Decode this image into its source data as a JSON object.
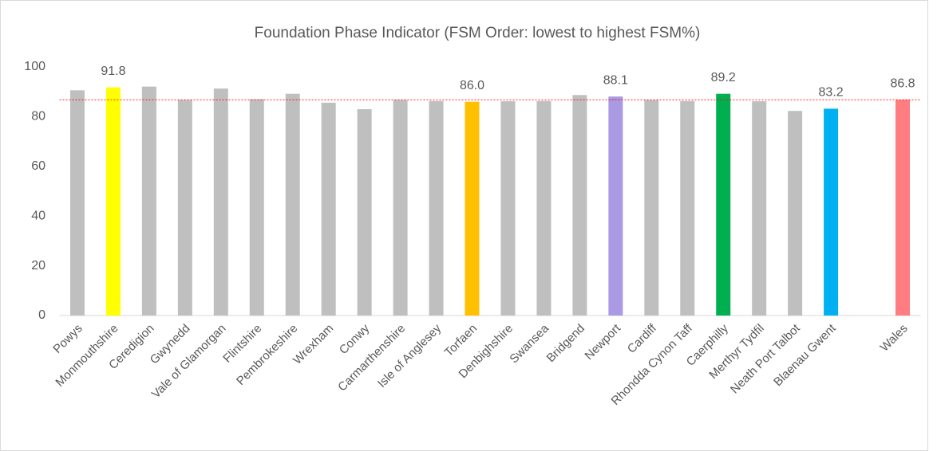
{
  "chart_data": {
    "type": "bar",
    "title": "Foundation Phase Indicator (FSM Order: lowest to highest FSM%)",
    "categories": [
      "Powys",
      "Monmouthshire",
      "Ceredigion",
      "Gwynedd",
      "Vale of Glamorgan",
      "Flintshire",
      "Pembrokeshire",
      "Wrexham",
      "Conwy",
      "Carmarthenshire",
      "Isle of Anglesey",
      "Torfaen",
      "Denbighshire",
      "Swansea",
      "Bridgend",
      "Newport",
      "Cardiff",
      "Rhondda Cynon Taff",
      "Caerphilly",
      "Merthyr Tydfil",
      "Neath Port Talbot",
      "Blaenau Gwent",
      null,
      "Wales"
    ],
    "values": [
      90.6,
      91.8,
      92.1,
      86.7,
      91.3,
      87.0,
      89.2,
      85.6,
      83.0,
      86.7,
      86.3,
      86.0,
      86.2,
      86.3,
      88.7,
      88.1,
      86.7,
      86.3,
      89.2,
      86.2,
      82.3,
      83.2,
      null,
      86.8
    ],
    "value_labels": [
      null,
      "91.8",
      null,
      null,
      null,
      null,
      null,
      null,
      null,
      null,
      null,
      "86.0",
      null,
      null,
      null,
      "88.1",
      null,
      null,
      "89.2",
      null,
      null,
      "83.2",
      null,
      "86.8"
    ],
    "colors": [
      "#bfbfbf",
      "#ffff00",
      "#bfbfbf",
      "#bfbfbf",
      "#bfbfbf",
      "#bfbfbf",
      "#bfbfbf",
      "#bfbfbf",
      "#bfbfbf",
      "#bfbfbf",
      "#bfbfbf",
      "#ffc000",
      "#bfbfbf",
      "#bfbfbf",
      "#bfbfbf",
      "#a99ae3",
      "#bfbfbf",
      "#bfbfbf",
      "#00b050",
      "#bfbfbf",
      "#bfbfbf",
      "#00b0f0",
      null,
      "#ff7c80"
    ],
    "reference_line": {
      "value": 86.8,
      "color": "#ff0000"
    },
    "ylim": [
      0,
      100
    ],
    "yticks": [
      0,
      20,
      40,
      60,
      80,
      100
    ],
    "grid": false
  }
}
